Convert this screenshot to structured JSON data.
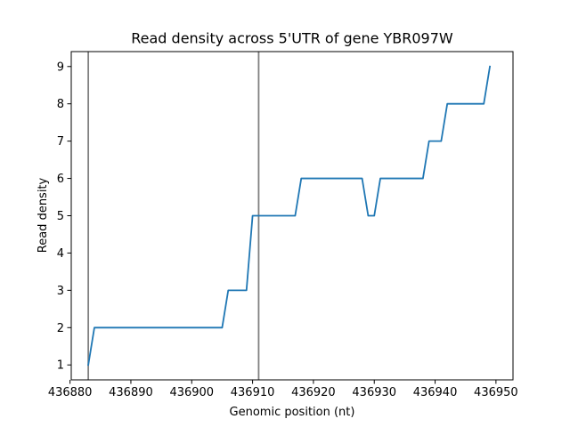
{
  "chart_data": {
    "type": "line",
    "title": "Read density across 5'UTR of gene YBR097W",
    "xlabel": "Genomic position (nt)",
    "ylabel": "Read density",
    "xlim": [
      436880.2,
      436952.8
    ],
    "ylim": [
      0.6,
      9.4
    ],
    "xticks": [
      436880,
      436890,
      436900,
      436910,
      436920,
      436930,
      436940,
      436950
    ],
    "yticks": [
      1,
      2,
      3,
      4,
      5,
      6,
      7,
      8,
      9
    ],
    "grid": false,
    "legend": "none",
    "line_color": "#1f77b4",
    "vline_color": "#808080",
    "vlines": [
      436883,
      436911
    ],
    "series": [
      {
        "x": [
          436883,
          436884,
          436885,
          436886,
          436887,
          436888,
          436889,
          436890,
          436891,
          436892,
          436893,
          436894,
          436895,
          436896,
          436897,
          436898,
          436899,
          436900,
          436901,
          436902,
          436903,
          436904,
          436905,
          436906,
          436907,
          436908,
          436909,
          436910,
          436911,
          436912,
          436913,
          436914,
          436915,
          436916,
          436917,
          436918,
          436919,
          436920,
          436921,
          436922,
          436923,
          436924,
          436925,
          436926,
          436927,
          436928,
          436929,
          436930,
          436931,
          436932,
          436933,
          436934,
          436935,
          436936,
          436937,
          436938,
          436939,
          436940,
          436941,
          436942,
          436943,
          436944,
          436945,
          436946,
          436947,
          436948,
          436949
        ],
        "values": [
          1,
          2,
          2,
          2,
          2,
          2,
          2,
          2,
          2,
          2,
          2,
          2,
          2,
          2,
          2,
          2,
          2,
          2,
          2,
          2,
          2,
          2,
          2,
          3,
          3,
          3,
          3,
          5,
          5,
          5,
          5,
          5,
          5,
          5,
          5,
          6,
          6,
          6,
          6,
          6,
          6,
          6,
          6,
          6,
          6,
          6,
          5,
          5,
          6,
          6,
          6,
          6,
          6,
          6,
          6,
          6,
          7,
          7,
          7,
          8,
          8,
          8,
          8,
          8,
          8,
          8,
          9
        ]
      }
    ]
  }
}
